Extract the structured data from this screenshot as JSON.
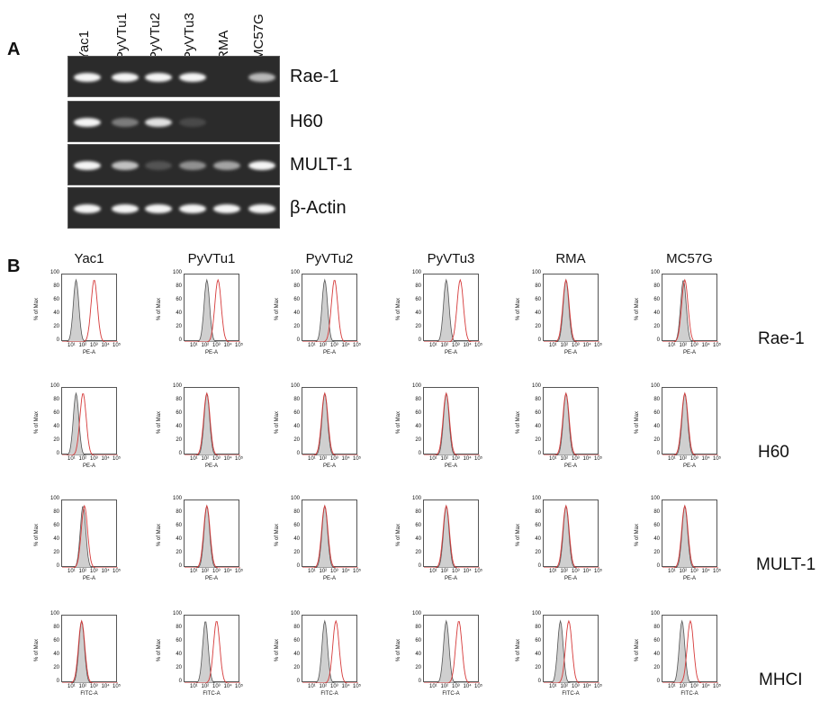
{
  "panel_a": {
    "letter": "A",
    "lanes": [
      "Yac1",
      "PyVTu1",
      "PyVTu2",
      "PyVTu3",
      "RMA",
      "MC57G"
    ],
    "genes": [
      {
        "label": "Rae-1",
        "bands": [
          1,
          1,
          1,
          1,
          0,
          0.7
        ]
      },
      {
        "label": "H60",
        "bands": [
          1,
          0.4,
          0.9,
          0.15,
          0,
          0
        ]
      },
      {
        "label": "MULT-1",
        "bands": [
          1,
          0.75,
          0.2,
          0.5,
          0.6,
          1
        ]
      },
      {
        "label": "β-Actin",
        "bands": [
          1,
          1,
          1,
          1,
          1,
          1
        ]
      }
    ]
  },
  "panel_b": {
    "letter": "B",
    "columns": [
      "Yac1",
      "PyVTu1",
      "PyVTu2",
      "PyVTu3",
      "RMA",
      "MC57G"
    ],
    "rows": [
      {
        "label": "Rae-1",
        "x_axis": "PE-A",
        "red_peaks": [
          3.3,
          3.4,
          3.3,
          3.6,
          2.6,
          2.6
        ],
        "grey_peaks": [
          2.0,
          2.6,
          2.6,
          2.6,
          2.6,
          2.5
        ]
      },
      {
        "label": "H60",
        "x_axis": "PE-A",
        "red_peaks": [
          2.5,
          2.6,
          2.6,
          2.6,
          2.6,
          2.6
        ],
        "grey_peaks": [
          2.0,
          2.6,
          2.6,
          2.6,
          2.6,
          2.6
        ]
      },
      {
        "label": "MULT-1",
        "x_axis": "PE-A",
        "red_peaks": [
          2.6,
          2.6,
          2.6,
          2.6,
          2.6,
          2.6
        ],
        "grey_peaks": [
          2.5,
          2.6,
          2.6,
          2.6,
          2.6,
          2.6
        ]
      },
      {
        "label": "MHCI",
        "x_axis": "FITC-A",
        "red_peaks": [
          2.4,
          3.3,
          3.4,
          3.5,
          2.8,
          3.0
        ],
        "grey_peaks": [
          2.4,
          2.5,
          2.6,
          2.6,
          2.2,
          2.4
        ]
      }
    ],
    "y_axis_label": "% of Max",
    "y_ticks": [
      "0",
      "20",
      "40",
      "60",
      "80",
      "100"
    ],
    "x_ticks": [
      "10¹",
      "10²",
      "10³",
      "10⁴",
      "10⁵"
    ]
  },
  "colors": {
    "red_trace": "#d63a3a",
    "grey_fill": "#cfcfcf",
    "grey_line": "#555555"
  }
}
